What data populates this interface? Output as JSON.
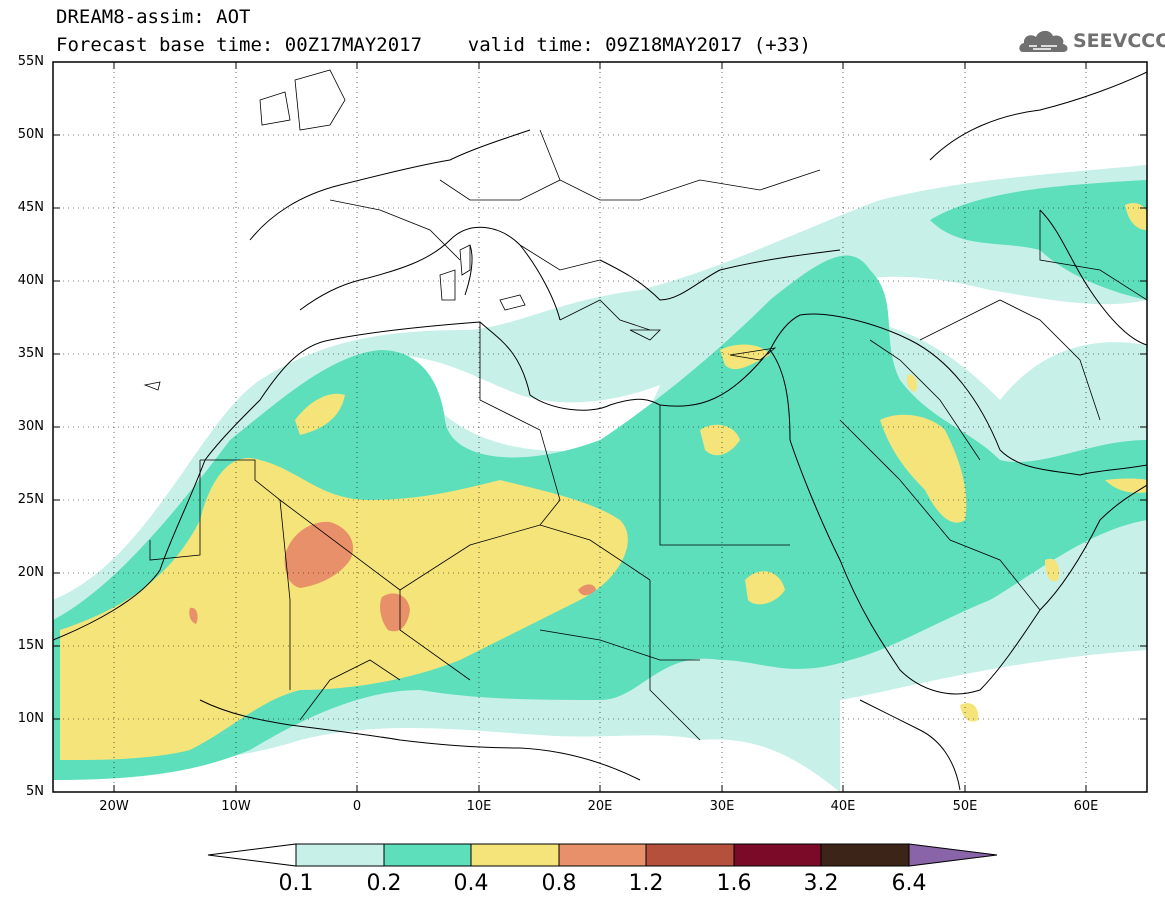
{
  "header": {
    "title": "DREAM8-assim: AOT",
    "subtitle": "Forecast base time: 00Z17MAY2017    valid time: 09Z18MAY2017 (+33)"
  },
  "logo": {
    "text": "SEEVCCC",
    "icon": "cloud-logo-icon"
  },
  "map": {
    "latitude_labels": [
      "55N",
      "50N",
      "45N",
      "40N",
      "35N",
      "30N",
      "25N",
      "20N",
      "15N",
      "10N",
      "5N"
    ],
    "longitude_labels": [
      "20W",
      "10W",
      "0",
      "10E",
      "20E",
      "30E",
      "40E",
      "50E",
      "60E"
    ],
    "grid": "dotted",
    "region": "North Africa, Mediterranean and Middle East"
  },
  "colorbar": {
    "labels": [
      "0.1",
      "0.2",
      "0.4",
      "0.8",
      "1.2",
      "1.6",
      "3.2",
      "6.4"
    ],
    "colors": [
      "#ffffff",
      "#c7f0e8",
      "#5ddfbc",
      "#f4e47a",
      "#e8906a",
      "#b4503c",
      "#7a0a28",
      "#3c2418",
      "#8a64a8"
    ]
  },
  "colors": {
    "level_0_1": "#c7f0e8",
    "level_0_2": "#5ddfbc",
    "level_0_4": "#f4e47a",
    "level_0_8": "#e8906a"
  }
}
